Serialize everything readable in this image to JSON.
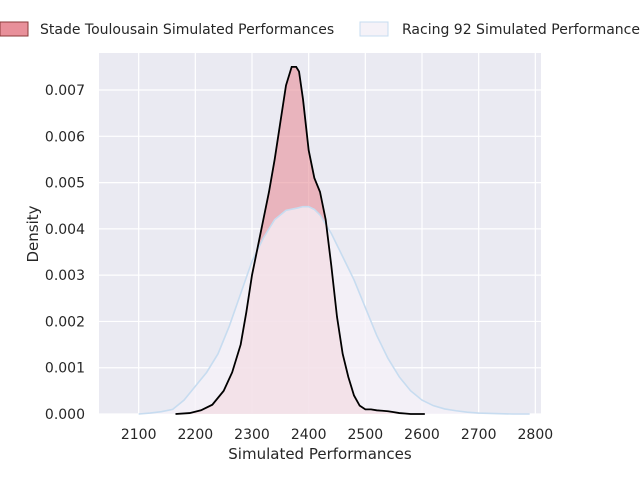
{
  "chart_data": {
    "type": "area",
    "xlabel": "Simulated Performances",
    "ylabel": "Density",
    "xlim": [
      2030,
      2810
    ],
    "ylim": [
      0,
      0.0078
    ],
    "grid": true,
    "legend": "top",
    "x_ticks": [
      {
        "value": 2100,
        "label": "2100"
      },
      {
        "value": 2200,
        "label": "2200"
      },
      {
        "value": 2300,
        "label": "2300"
      },
      {
        "value": 2400,
        "label": "2400"
      },
      {
        "value": 2500,
        "label": "2500"
      },
      {
        "value": 2600,
        "label": "2600"
      },
      {
        "value": 2700,
        "label": "2700"
      },
      {
        "value": 2800,
        "label": "2800"
      }
    ],
    "y_ticks": [
      {
        "value": 0,
        "label": "0.000"
      },
      {
        "value": 0.001,
        "label": "0.001"
      },
      {
        "value": 0.002,
        "label": "0.002"
      },
      {
        "value": 0.003,
        "label": "0.003"
      },
      {
        "value": 0.004,
        "label": "0.004"
      },
      {
        "value": 0.005,
        "label": "0.005"
      },
      {
        "value": 0.006,
        "label": "0.006"
      },
      {
        "value": 0.007,
        "label": "0.007"
      }
    ],
    "series": [
      {
        "name": "Stade Toulousain Simulated Performances",
        "fill": "#e8909a",
        "fill_opacity": 0.6,
        "stroke": "#000000",
        "x": [
          2165,
          2190,
          2210,
          2230,
          2250,
          2265,
          2280,
          2290,
          2300,
          2310,
          2320,
          2330,
          2340,
          2350,
          2360,
          2370,
          2378,
          2383,
          2390,
          2400,
          2410,
          2420,
          2430,
          2440,
          2450,
          2460,
          2470,
          2480,
          2490,
          2500,
          2510,
          2520,
          2530,
          2540,
          2550,
          2560,
          2570,
          2580,
          2590,
          2605
        ],
        "y": [
          0.0,
          2e-05,
          8e-05,
          0.0002,
          0.0005,
          0.0009,
          0.0015,
          0.0022,
          0.003,
          0.0036,
          0.0042,
          0.0048,
          0.0055,
          0.0063,
          0.0071,
          0.0075,
          0.0075,
          0.0074,
          0.0068,
          0.0057,
          0.0051,
          0.0048,
          0.0042,
          0.0032,
          0.0021,
          0.0013,
          0.0008,
          0.0004,
          0.00018,
          0.0001,
          0.0001,
          8e-05,
          7e-05,
          6e-05,
          4e-05,
          2e-05,
          1e-05,
          0.0,
          0.0,
          0.0
        ]
      },
      {
        "name": "Racing 92 Simulated Performances",
        "fill": "#f5f2f8",
        "fill_opacity": 0.75,
        "stroke": "#c7dcf0",
        "x": [
          2100,
          2120,
          2140,
          2160,
          2180,
          2200,
          2220,
          2240,
          2260,
          2280,
          2300,
          2320,
          2340,
          2360,
          2380,
          2390,
          2400,
          2410,
          2420,
          2440,
          2460,
          2480,
          2500,
          2520,
          2540,
          2560,
          2580,
          2600,
          2620,
          2640,
          2660,
          2680,
          2700,
          2730,
          2760,
          2790
        ],
        "y": [
          0.0,
          2e-05,
          5e-05,
          0.0001,
          0.0003,
          0.0006,
          0.0009,
          0.0013,
          0.0019,
          0.0026,
          0.0033,
          0.0038,
          0.0042,
          0.0044,
          0.00445,
          0.00448,
          0.00448,
          0.00442,
          0.0043,
          0.0039,
          0.0034,
          0.0029,
          0.0023,
          0.0017,
          0.0012,
          0.0008,
          0.0005,
          0.0003,
          0.00018,
          0.00011,
          7e-05,
          4e-05,
          2e-05,
          1e-05,
          0.0,
          0.0
        ]
      }
    ]
  }
}
